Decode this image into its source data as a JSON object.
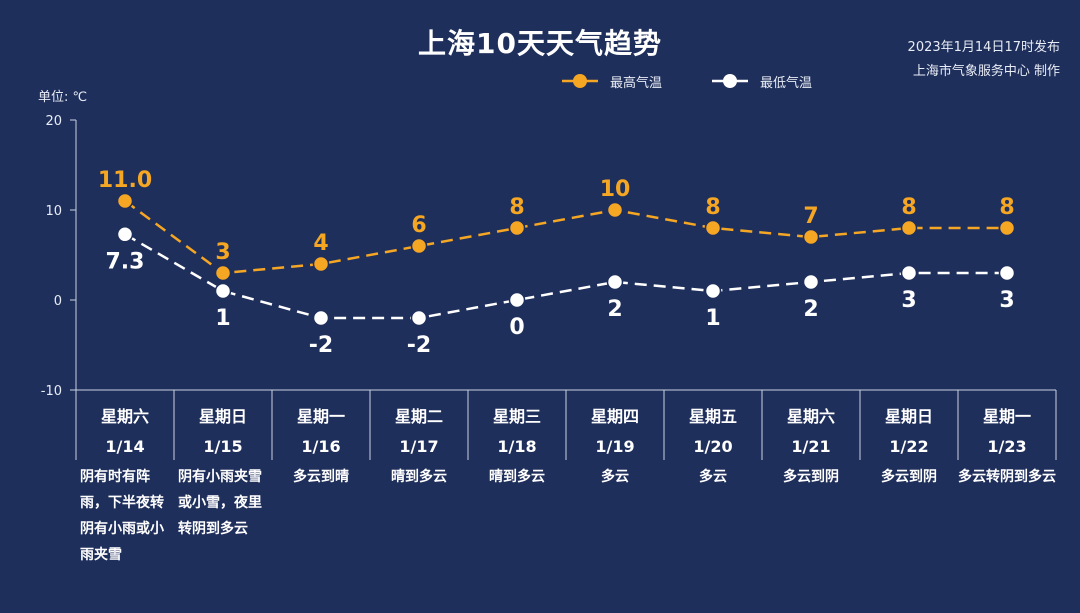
{
  "header": {
    "title": "上海10天天气趋势",
    "publish_time": "2023年1月14日17时发布",
    "publisher": "上海市气象服务中心 制作",
    "unit": "单位: ℃"
  },
  "legend": {
    "high_label": "最高气温",
    "low_label": "最低气温"
  },
  "colors": {
    "background": "#1f2f5c",
    "high": "#f5a623",
    "low": "#ffffff",
    "axis": "#c8d0e0"
  },
  "chart_data": {
    "type": "line",
    "title": "上海10天天气趋势",
    "ylabel": "单位: ℃",
    "ylim": [
      -10,
      20
    ],
    "yticks": [
      "20",
      "10",
      "0",
      "-10"
    ],
    "days": [
      {
        "weekday": "星期六",
        "date": "1/14",
        "weather": "阴有时有阵雨，下半夜转阴有小雨或小雨夹雪",
        "high": "11.0",
        "low": "7.3"
      },
      {
        "weekday": "星期日",
        "date": "1/15",
        "weather": "阴有小雨夹雪或小雪，夜里转阴到多云",
        "high": "3",
        "low": "1"
      },
      {
        "weekday": "星期一",
        "date": "1/16",
        "weather": "多云到晴",
        "high": "4",
        "low": "-2"
      },
      {
        "weekday": "星期二",
        "date": "1/17",
        "weather": "晴到多云",
        "high": "6",
        "low": "-2"
      },
      {
        "weekday": "星期三",
        "date": "1/18",
        "weather": "晴到多云",
        "high": "8",
        "low": "0"
      },
      {
        "weekday": "星期四",
        "date": "1/19",
        "weather": "多云",
        "high": "10",
        "low": "2"
      },
      {
        "weekday": "星期五",
        "date": "1/20",
        "weather": "多云",
        "high": "8",
        "low": "1"
      },
      {
        "weekday": "星期六",
        "date": "1/21",
        "weather": "多云到阴",
        "high": "7",
        "low": "2"
      },
      {
        "weekday": "星期日",
        "date": "1/22",
        "weather": "多云到阴",
        "high": "8",
        "low": "3"
      },
      {
        "weekday": "星期一",
        "date": "1/23",
        "weather": "多云转阴到多云",
        "high": "8",
        "low": "3"
      }
    ]
  }
}
